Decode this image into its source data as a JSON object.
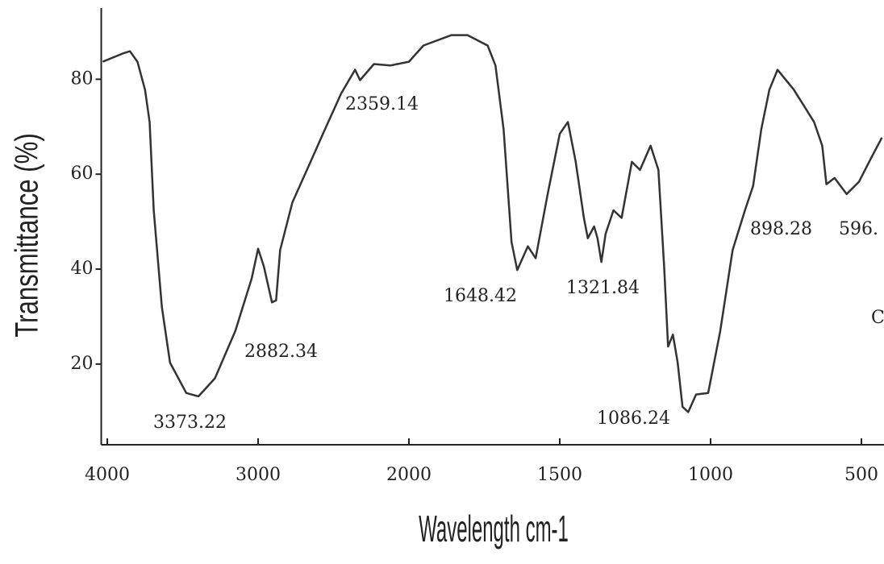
{
  "chart_data": {
    "type": "line",
    "xlabel": "Wavelength cm-1",
    "ylabel": "Transmittance (%)",
    "x": [
      4030,
      3900,
      3850,
      3800,
      3750,
      3719,
      3692,
      3638,
      3584,
      3476,
      3395,
      3286,
      3151,
      3043,
      3000,
      2962,
      2908,
      2881,
      2854,
      2773,
      2665,
      2557,
      2449,
      2357,
      2324,
      2232,
      2124,
      2000,
      1952,
      1859,
      1806,
      1739,
      1713,
      1686,
      1660,
      1641,
      1606,
      1580,
      1540,
      1500,
      1473,
      1447,
      1420,
      1407,
      1386,
      1375,
      1362,
      1348,
      1322,
      1295,
      1261,
      1234,
      1199,
      1173,
      1154,
      1141,
      1125,
      1109,
      1093,
      1074,
      1048,
      1008,
      968,
      927,
      886,
      859,
      832,
      805,
      778,
      724,
      657,
      630,
      616,
      589,
      549,
      508,
      468,
      432
    ],
    "series": [
      {
        "name": "Transmittance",
        "color": "#333333",
        "values": [
          83.7,
          85.4,
          85.9,
          83.7,
          77.8,
          71,
          52.4,
          32,
          20.3,
          13.9,
          13.2,
          17,
          27,
          38,
          44.3,
          40.6,
          33,
          33.4,
          44,
          54,
          61.7,
          69.4,
          77,
          82,
          79.8,
          83.2,
          82.9,
          83.7,
          87.1,
          89.3,
          89.3,
          87.1,
          82.9,
          69.4,
          45.7,
          39.8,
          44.8,
          42.3,
          55.8,
          68.5,
          71,
          62.6,
          50.8,
          46.5,
          49,
          46.5,
          41.5,
          47.4,
          52.4,
          50.8,
          62.6,
          60.9,
          66,
          60.9,
          40.6,
          23.7,
          26.2,
          20.3,
          11,
          9.9,
          13.6,
          13.9,
          27,
          44,
          52.4,
          57.5,
          69.4,
          77.8,
          82,
          77.8,
          71,
          66,
          57.9,
          59.2,
          55.8,
          58.4,
          63.4,
          67.7
        ]
      }
    ],
    "xlim": [
      4040,
      425
    ],
    "xticks": [
      4000,
      3000,
      2000,
      1500,
      1000,
      500
    ],
    "ylim": [
      3,
      95
    ],
    "yticks": [
      20,
      40,
      60,
      80
    ],
    "annotations": [
      "3373.22",
      "2882.34",
      "2359.14",
      "1648.42",
      "1321.84",
      "1086.24",
      "898.28",
      "596.",
      "C"
    ]
  }
}
